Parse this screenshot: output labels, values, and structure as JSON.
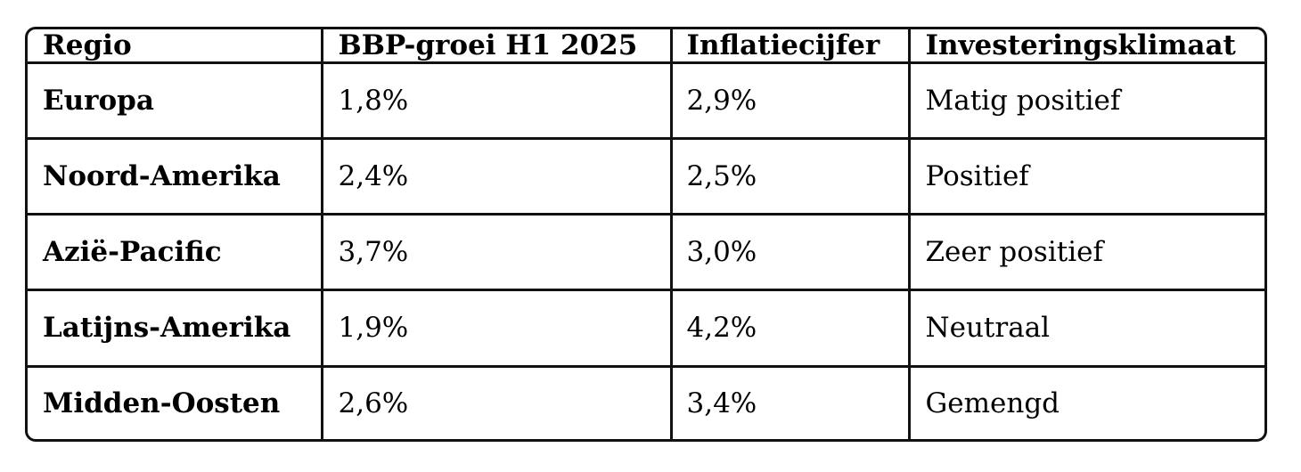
{
  "table": {
    "headers": [
      "Regio",
      "BBP-groei H1 2025",
      "Inflatiecijfer",
      "Investeringsklimaat"
    ],
    "rows": [
      [
        "Europa",
        "1,8%",
        "2,9%",
        "Matig positief"
      ],
      [
        "Noord-Amerika",
        "2,4%",
        "2,5%",
        "Positief"
      ],
      [
        "Azië-Pacific",
        "3,7%",
        "3,0%",
        "Zeer positief"
      ],
      [
        "Latijns-Amerika",
        "1,9%",
        "4,2%",
        "Neutraal"
      ],
      [
        "Midden-Oosten",
        "2,6%",
        "3,4%",
        "Gemengd"
      ]
    ]
  },
  "colors": {
    "border": "#111111",
    "text": "#000000",
    "background": "#ffffff"
  }
}
